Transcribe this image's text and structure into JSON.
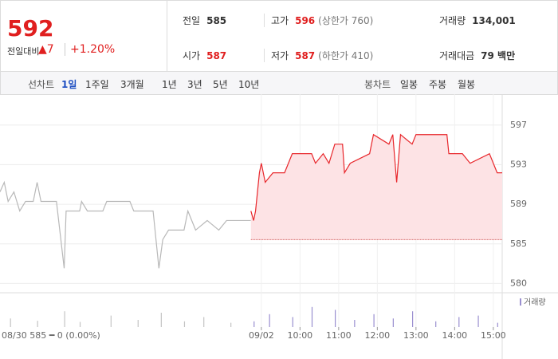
{
  "header": {
    "price": 592,
    "change_label": "전일대비",
    "change": "▲7",
    "change_pct": "+1.20%",
    "stats": [
      {
        "label": "전일",
        "value": "585",
        "note": ""
      },
      {
        "label": "고가",
        "value": "596",
        "note": "(상한가 760)"
      },
      {
        "label": "거래량",
        "value": "134,001",
        "note": ""
      },
      {
        "label": "시가",
        "value": "587",
        "note": ""
      },
      {
        "label": "저가",
        "value": "587",
        "note": "(하한가 410)"
      },
      {
        "label": "거래대금",
        "value": "79 백만",
        "note": ""
      }
    ]
  },
  "tabs": {
    "line_label": "선차트",
    "line_periods": [
      "1일",
      "1주일",
      "3개월",
      "1년",
      "3년",
      "5년",
      "10년"
    ],
    "candle_label": "봉차트",
    "candle_periods": [
      "일봉",
      "주봉",
      "월봉"
    ]
  },
  "chart_data": {
    "type": "line",
    "xlim": [
      2.24,
      15.23
    ],
    "ylim": [
      579.6,
      598.4
    ],
    "xticks": [
      {
        "value": 9,
        "label": "09/02"
      },
      {
        "value": 10,
        "label": "10:00"
      },
      {
        "value": 11,
        "label": "11:00"
      },
      {
        "value": 12,
        "label": "12:00"
      },
      {
        "value": 13,
        "label": "13:00"
      },
      {
        "value": 14,
        "label": "14:00"
      },
      {
        "value": 15,
        "label": "15:00"
      }
    ],
    "yticks": [
      {
        "value": 580.4,
        "label": "580"
      },
      {
        "value": 584.55,
        "label": "585"
      },
      {
        "value": 588.7,
        "label": "589"
      },
      {
        "value": 592.85,
        "label": "593"
      },
      {
        "value": 597,
        "label": "597"
      }
    ],
    "grid": true,
    "baseline": 585,
    "prev_day_label": "08/30 585 ━ 0 (0.00%)",
    "series": [
      {
        "color": "#b8b8b8",
        "x": [
          2.24,
          2.35,
          2.45,
          2.6,
          2.75,
          2.9,
          3.1,
          3.2,
          3.3,
          3.7,
          3.9,
          3.95,
          4.3,
          4.35,
          4.5,
          4.9,
          5.0,
          5.6,
          5.7,
          6.2,
          6.3,
          6.35,
          6.45,
          6.6,
          7.0,
          7.1,
          7.3,
          7.6,
          7.9,
          8.1,
          8.73
        ],
        "values": [
          590,
          591,
          589,
          590,
          588,
          589,
          589,
          591,
          589,
          589,
          582,
          588,
          588,
          589,
          588,
          588,
          589,
          589,
          588,
          588,
          584,
          582,
          585,
          586,
          586,
          588,
          586,
          587,
          586,
          587,
          587
        ]
      },
      {
        "color": "#e8262b",
        "fill": "#fde3e5",
        "x": [
          8.73,
          8.8,
          8.85,
          8.95,
          9.0,
          9.1,
          9.3,
          9.6,
          9.8,
          10.3,
          10.4,
          10.6,
          10.75,
          10.9,
          11.1,
          11.15,
          11.3,
          11.8,
          11.9,
          12.3,
          12.4,
          12.5,
          12.6,
          12.9,
          13.0,
          13.3,
          13.8,
          13.85,
          14.2,
          14.4,
          14.9,
          15.0,
          15.1,
          15.23
        ],
        "values": [
          588,
          587,
          588,
          592,
          593,
          591,
          592,
          592,
          594,
          594,
          593,
          594,
          593,
          595,
          595,
          592,
          593,
          594,
          596,
          595,
          596,
          591,
          596,
          595,
          596,
          596,
          596,
          594,
          594,
          593,
          594,
          593,
          592,
          592
        ]
      }
    ],
    "volume": {
      "name": "거래량",
      "ylim": [
        0,
        100
      ],
      "series": [
        {
          "color": "#c4c4c4",
          "x": [
            2.5,
            3.2,
            3.9,
            4.3,
            5.1,
            5.8,
            6.4,
            7.0,
            7.5,
            8.2
          ],
          "values": [
            30,
            22,
            55,
            18,
            40,
            25,
            50,
            20,
            35,
            15
          ]
        },
        {
          "color": "#9a8fd0",
          "x": [
            8.8,
            9.2,
            9.8,
            10.3,
            10.9,
            11.4,
            11.9,
            12.4,
            12.9,
            13.5,
            14.1,
            14.6,
            15.1
          ],
          "values": [
            20,
            45,
            35,
            70,
            60,
            25,
            45,
            30,
            55,
            20,
            35,
            40,
            15
          ]
        }
      ]
    }
  }
}
